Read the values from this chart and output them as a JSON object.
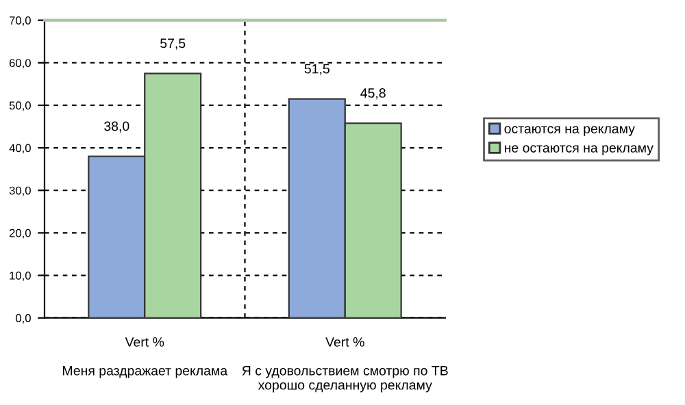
{
  "chart_data": {
    "type": "bar",
    "categories": [
      "Vert %\n\nМеня раздражает реклама",
      "Vert %\n\nЯ с удовольствием смотрю по ТВ\nхорошо сделанную рекламу"
    ],
    "series": [
      {
        "name": "остаются на рекламу",
        "color": "#8eaadb",
        "values": [
          38.0,
          51.5
        ],
        "value_labels": [
          "38,0",
          "51,5"
        ]
      },
      {
        "name": "не остаются на рекламу",
        "color": "#a9d5a0",
        "values": [
          57.5,
          45.8
        ],
        "value_labels": [
          "57,5",
          "45,8"
        ]
      }
    ],
    "ylim": [
      0,
      70
    ],
    "yticks": [
      {
        "value": 0,
        "label": "0,0"
      },
      {
        "value": 10,
        "label": "10,0"
      },
      {
        "value": 20,
        "label": "20,0"
      },
      {
        "value": 30,
        "label": "30,0"
      },
      {
        "value": 40,
        "label": "40,0"
      },
      {
        "value": 50,
        "label": "50,0"
      },
      {
        "value": 60,
        "label": "60,0"
      },
      {
        "value": 70,
        "label": "70,0"
      }
    ],
    "grid": true,
    "legend": "right"
  }
}
